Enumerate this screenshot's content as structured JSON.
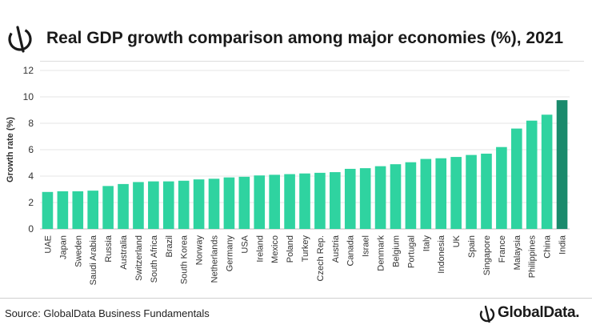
{
  "header": {
    "title": "Real GDP growth comparison among major economies (%), 2021"
  },
  "footer": {
    "source": "Source: GlobalData Business Fundamentals",
    "brand": "GlobalData."
  },
  "colors": {
    "bar": "#2fd3a0",
    "highlight": "#1a8a6c",
    "text": "#1a1a1a"
  },
  "chart_data": {
    "type": "bar",
    "title": "Real GDP growth comparison among major economies (%), 2021",
    "xlabel": "",
    "ylabel": "Growth rate (%)",
    "ylim": [
      0,
      12
    ],
    "yticks": [
      0,
      2,
      4,
      6,
      8,
      10,
      12
    ],
    "grid": true,
    "categories": [
      "UAE",
      "Japan",
      "Sweden",
      "Saudi Arabia",
      "Russia",
      "Australia",
      "Switzerland",
      "South Africa",
      "Brazil",
      "South Korea",
      "Norway",
      "Netherlands",
      "Germany",
      "USA",
      "Ireland",
      "Mexico",
      "Poland",
      "Turkey",
      "Czech Rep.",
      "Austria",
      "Canada",
      "Israel",
      "Denmark",
      "Belgium",
      "Portugal",
      "Italy",
      "Indonesia",
      "UK",
      "Spain",
      "Singapore",
      "France",
      "Malaysia",
      "Philippines",
      "China",
      "India"
    ],
    "values": [
      2.8,
      2.85,
      2.85,
      2.9,
      3.25,
      3.4,
      3.55,
      3.6,
      3.6,
      3.65,
      3.75,
      3.8,
      3.9,
      3.95,
      4.05,
      4.1,
      4.15,
      4.2,
      4.25,
      4.3,
      4.55,
      4.6,
      4.75,
      4.9,
      5.05,
      5.3,
      5.35,
      5.45,
      5.6,
      5.7,
      6.2,
      7.6,
      8.2,
      8.65,
      9.75
    ],
    "highlight": "India"
  }
}
